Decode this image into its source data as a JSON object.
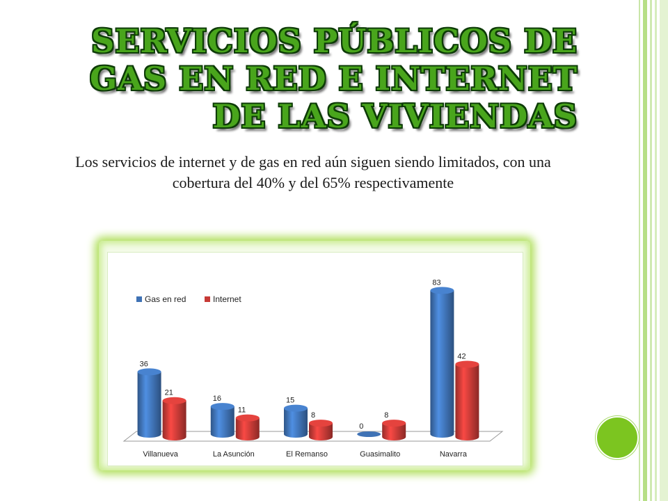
{
  "slide": {
    "title_lines": [
      "SERVICIOS PÚBLICOS DE",
      "GAS EN RED E INTERNET",
      "DE LAS VIVIENDAS"
    ],
    "subtitle": "Los servicios de internet y de gas en red aún siguen siendo limitados, con una cobertura del 40% y del 65% respectivamente",
    "accent_color": "#49a51c",
    "circle_color": "#7cc520"
  },
  "chart_data": {
    "type": "bar",
    "categories": [
      "Villanueva",
      "La Asunción",
      "El Remanso",
      "Guasimalito",
      "Navarra"
    ],
    "series": [
      {
        "name": "Gas en red",
        "values": [
          36,
          16,
          15,
          0,
          83
        ],
        "color": "#3f72b5"
      },
      {
        "name": "Internet",
        "values": [
          21,
          11,
          8,
          8,
          42
        ],
        "color": "#c73a36"
      }
    ],
    "ylim": [
      0,
      90
    ],
    "legend_position": "top-left",
    "grid": false,
    "data_labels": true
  }
}
